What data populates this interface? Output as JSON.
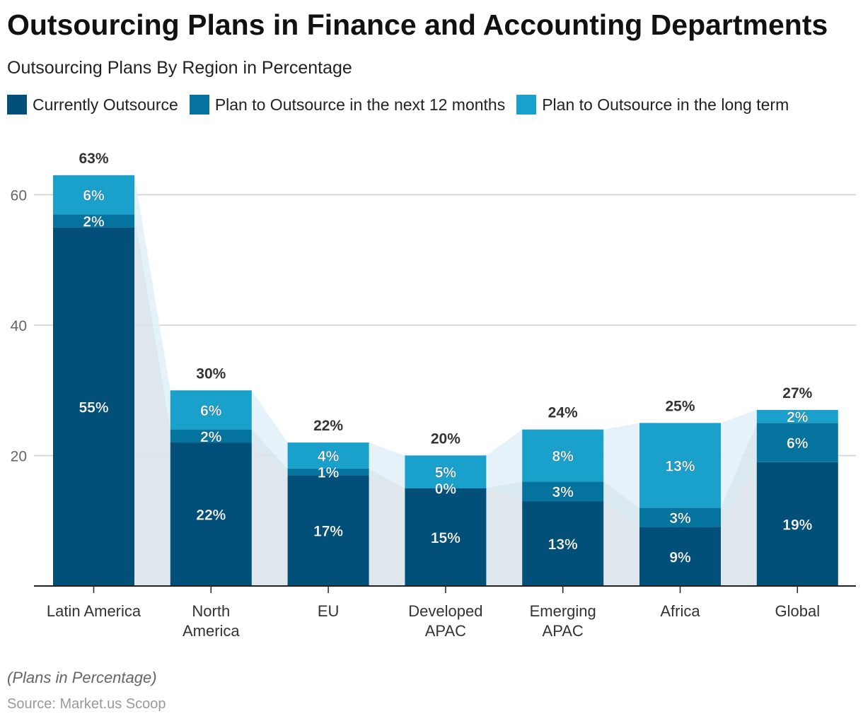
{
  "title": "Outsourcing Plans in Finance and Accounting Departments",
  "subtitle": "Outsourcing Plans By Region in Percentage",
  "note": "(Plans in Percentage)",
  "source": "Source: Market.us Scoop",
  "chart_data": {
    "type": "bar",
    "stacked": true,
    "categories": [
      [
        "Latin America"
      ],
      [
        "North",
        "America"
      ],
      [
        "EU"
      ],
      [
        "Developed",
        "APAC"
      ],
      [
        "Emerging",
        "APAC"
      ],
      [
        "Africa"
      ],
      [
        "Global"
      ]
    ],
    "series": [
      {
        "name": "Currently Outsource",
        "color": "#02507a",
        "values": [
          55,
          22,
          17,
          15,
          13,
          9,
          19
        ]
      },
      {
        "name": "Plan to Outsource in the next 12 months",
        "color": "#04739d",
        "values": [
          2,
          2,
          1,
          0,
          3,
          3,
          6
        ]
      },
      {
        "name": "Plan to Outsource in the long term",
        "color": "#19a1cc",
        "values": [
          6,
          6,
          4,
          5,
          8,
          13,
          2
        ]
      }
    ],
    "totals": [
      63,
      30,
      22,
      20,
      24,
      25,
      27
    ],
    "yticks": [
      20,
      40,
      60
    ],
    "ylim": [
      0,
      68
    ],
    "grid": true,
    "legend": "top-left"
  }
}
